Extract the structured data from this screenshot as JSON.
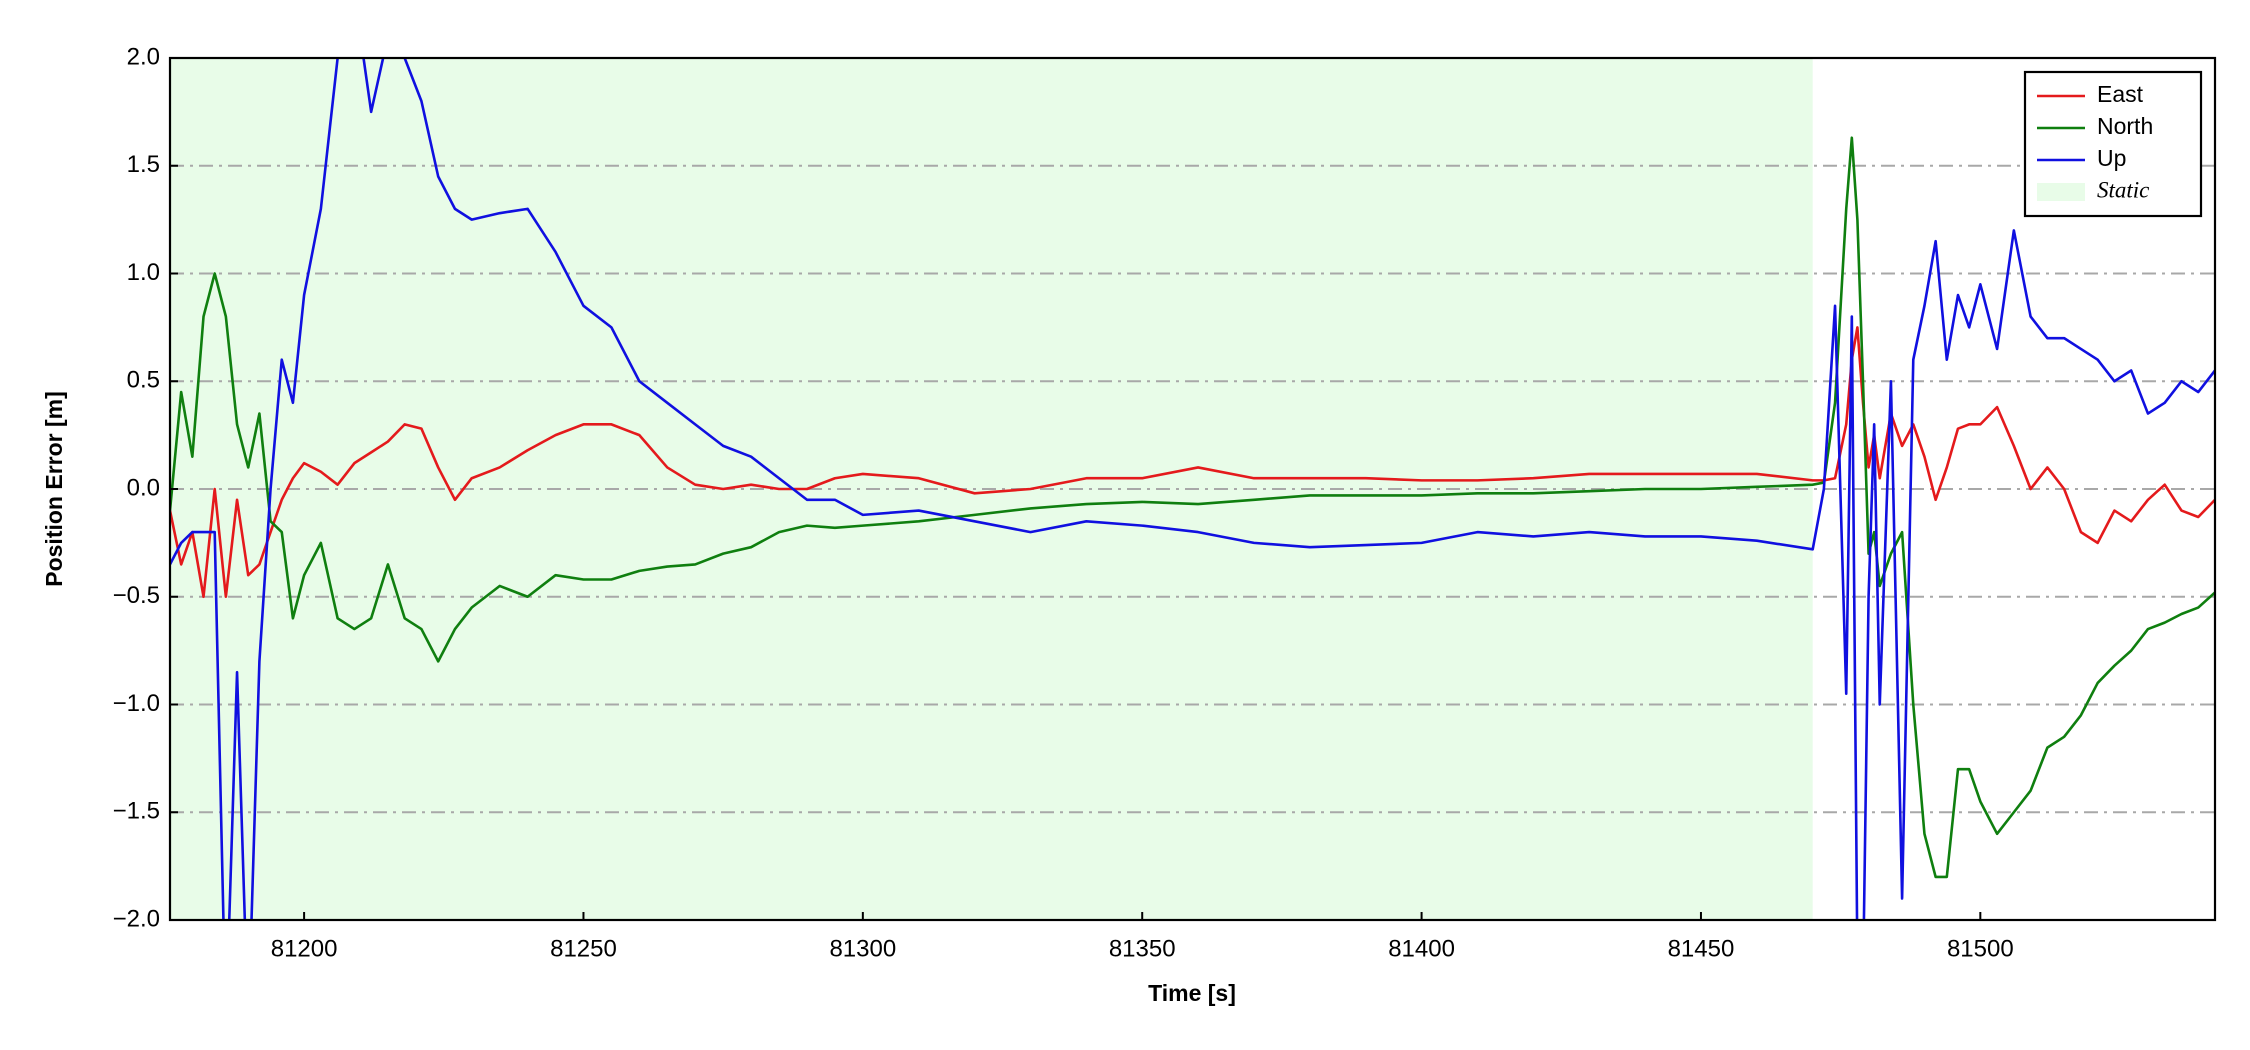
{
  "chart_data": {
    "type": "line",
    "xlabel": "Time [s]",
    "ylabel": "Position Error [m]",
    "xlim": [
      81176,
      81542
    ],
    "ylim": [
      -2.0,
      2.0
    ],
    "xticks": [
      81200,
      81250,
      81300,
      81350,
      81400,
      81450,
      81500
    ],
    "yticks": [
      {
        "value": -2.0,
        "label": "−2.0"
      },
      {
        "value": -1.5,
        "label": "−1.5"
      },
      {
        "value": -1.0,
        "label": "−1.0"
      },
      {
        "value": -0.5,
        "label": "−0.5"
      },
      {
        "value": 0.0,
        "label": "0.0"
      },
      0.5,
      {
        "value": 1.0,
        "label": "1.0"
      },
      1.5,
      {
        "value": 2.0,
        "label": "2.0"
      }
    ],
    "grid": true,
    "legend": "upper right",
    "static": {
      "name": "Static",
      "x": [
        81176,
        81470
      ],
      "color": "#e8fce8"
    },
    "x": [
      81176,
      81178,
      81180,
      81182,
      81184,
      81186,
      81188,
      81190,
      81192,
      81194,
      81196,
      81198,
      81200,
      81203,
      81206,
      81209,
      81212,
      81215,
      81218,
      81221,
      81224,
      81227,
      81230,
      81235,
      81240,
      81245,
      81250,
      81255,
      81260,
      81265,
      81270,
      81275,
      81280,
      81285,
      81290,
      81295,
      81300,
      81310,
      81320,
      81330,
      81340,
      81350,
      81360,
      81370,
      81380,
      81390,
      81400,
      81410,
      81420,
      81430,
      81440,
      81450,
      81460,
      81470,
      81472,
      81474,
      81476,
      81477,
      81478,
      81479,
      81480,
      81481,
      81482,
      81484,
      81486,
      81488,
      81490,
      81492,
      81494,
      81496,
      81498,
      81500,
      81503,
      81506,
      81509,
      81512,
      81515,
      81518,
      81521,
      81524,
      81527,
      81530,
      81533,
      81536,
      81539,
      81542
    ],
    "series": [
      {
        "name": "East",
        "color": "#e41a1c",
        "values": [
          -0.1,
          -0.35,
          -0.2,
          -0.5,
          0.0,
          -0.5,
          -0.05,
          -0.4,
          -0.35,
          -0.2,
          -0.05,
          0.05,
          0.12,
          0.08,
          0.02,
          0.12,
          0.17,
          0.22,
          0.3,
          0.28,
          0.1,
          -0.05,
          0.05,
          0.1,
          0.18,
          0.25,
          0.3,
          0.3,
          0.25,
          0.1,
          0.02,
          0.0,
          0.02,
          0.0,
          0.0,
          0.05,
          0.07,
          0.05,
          -0.02,
          0.0,
          0.05,
          0.05,
          0.1,
          0.05,
          0.05,
          0.05,
          0.04,
          0.04,
          0.05,
          0.07,
          0.07,
          0.07,
          0.07,
          0.04,
          0.04,
          0.05,
          0.3,
          0.6,
          0.75,
          0.4,
          0.1,
          0.25,
          0.05,
          0.35,
          0.2,
          0.3,
          0.15,
          -0.05,
          0.1,
          0.28,
          0.3,
          0.3,
          0.38,
          0.2,
          0.0,
          0.1,
          0.0,
          -0.2,
          -0.25,
          -0.1,
          -0.15,
          -0.05,
          0.02,
          -0.1,
          -0.13,
          -0.05
        ]
      },
      {
        "name": "North",
        "color": "#0f7f0f",
        "values": [
          -0.1,
          0.45,
          0.15,
          0.8,
          1.0,
          0.8,
          0.3,
          0.1,
          0.35,
          -0.15,
          -0.2,
          -0.6,
          -0.4,
          -0.25,
          -0.6,
          -0.65,
          -0.6,
          -0.35,
          -0.6,
          -0.65,
          -0.8,
          -0.65,
          -0.55,
          -0.45,
          -0.5,
          -0.4,
          -0.42,
          -0.42,
          -0.38,
          -0.36,
          -0.35,
          -0.3,
          -0.27,
          -0.2,
          -0.17,
          -0.18,
          -0.17,
          -0.15,
          -0.12,
          -0.09,
          -0.07,
          -0.06,
          -0.07,
          -0.05,
          -0.03,
          -0.03,
          -0.03,
          -0.02,
          -0.02,
          -0.01,
          0.0,
          0.0,
          0.01,
          0.02,
          0.03,
          0.4,
          1.3,
          1.63,
          1.25,
          0.5,
          -0.3,
          -0.2,
          -0.45,
          -0.3,
          -0.2,
          -1.0,
          -1.6,
          -1.8,
          -1.8,
          -1.3,
          -1.3,
          -1.45,
          -1.6,
          -1.5,
          -1.4,
          -1.2,
          -1.15,
          -1.05,
          -0.9,
          -0.82,
          -0.75,
          -0.65,
          -0.62,
          -0.58,
          -0.55,
          -0.48
        ]
      },
      {
        "name": "Up",
        "color": "#1010e0",
        "values": [
          -0.35,
          -0.25,
          -0.2,
          -0.2,
          -0.2,
          -2.5,
          -0.85,
          -2.5,
          -0.8,
          0.0,
          0.6,
          0.4,
          0.9,
          1.3,
          2.0,
          2.3,
          1.75,
          2.1,
          2.0,
          1.8,
          1.45,
          1.3,
          1.25,
          1.28,
          1.3,
          1.1,
          0.85,
          0.75,
          0.5,
          0.4,
          0.3,
          0.2,
          0.15,
          0.05,
          -0.05,
          -0.05,
          -0.12,
          -0.1,
          -0.15,
          -0.2,
          -0.15,
          -0.17,
          -0.2,
          -0.25,
          -0.27,
          -0.26,
          -0.25,
          -0.2,
          -0.22,
          -0.2,
          -0.22,
          -0.22,
          -0.24,
          -0.28,
          0.0,
          0.85,
          -0.95,
          0.8,
          -2.2,
          -2.3,
          -0.5,
          0.3,
          -1.0,
          0.5,
          -1.9,
          0.6,
          0.85,
          1.15,
          0.6,
          0.9,
          0.75,
          0.95,
          0.65,
          1.2,
          0.8,
          0.7,
          0.7,
          0.65,
          0.6,
          0.5,
          0.55,
          0.35,
          0.4,
          0.5,
          0.45,
          0.55
        ]
      }
    ]
  }
}
